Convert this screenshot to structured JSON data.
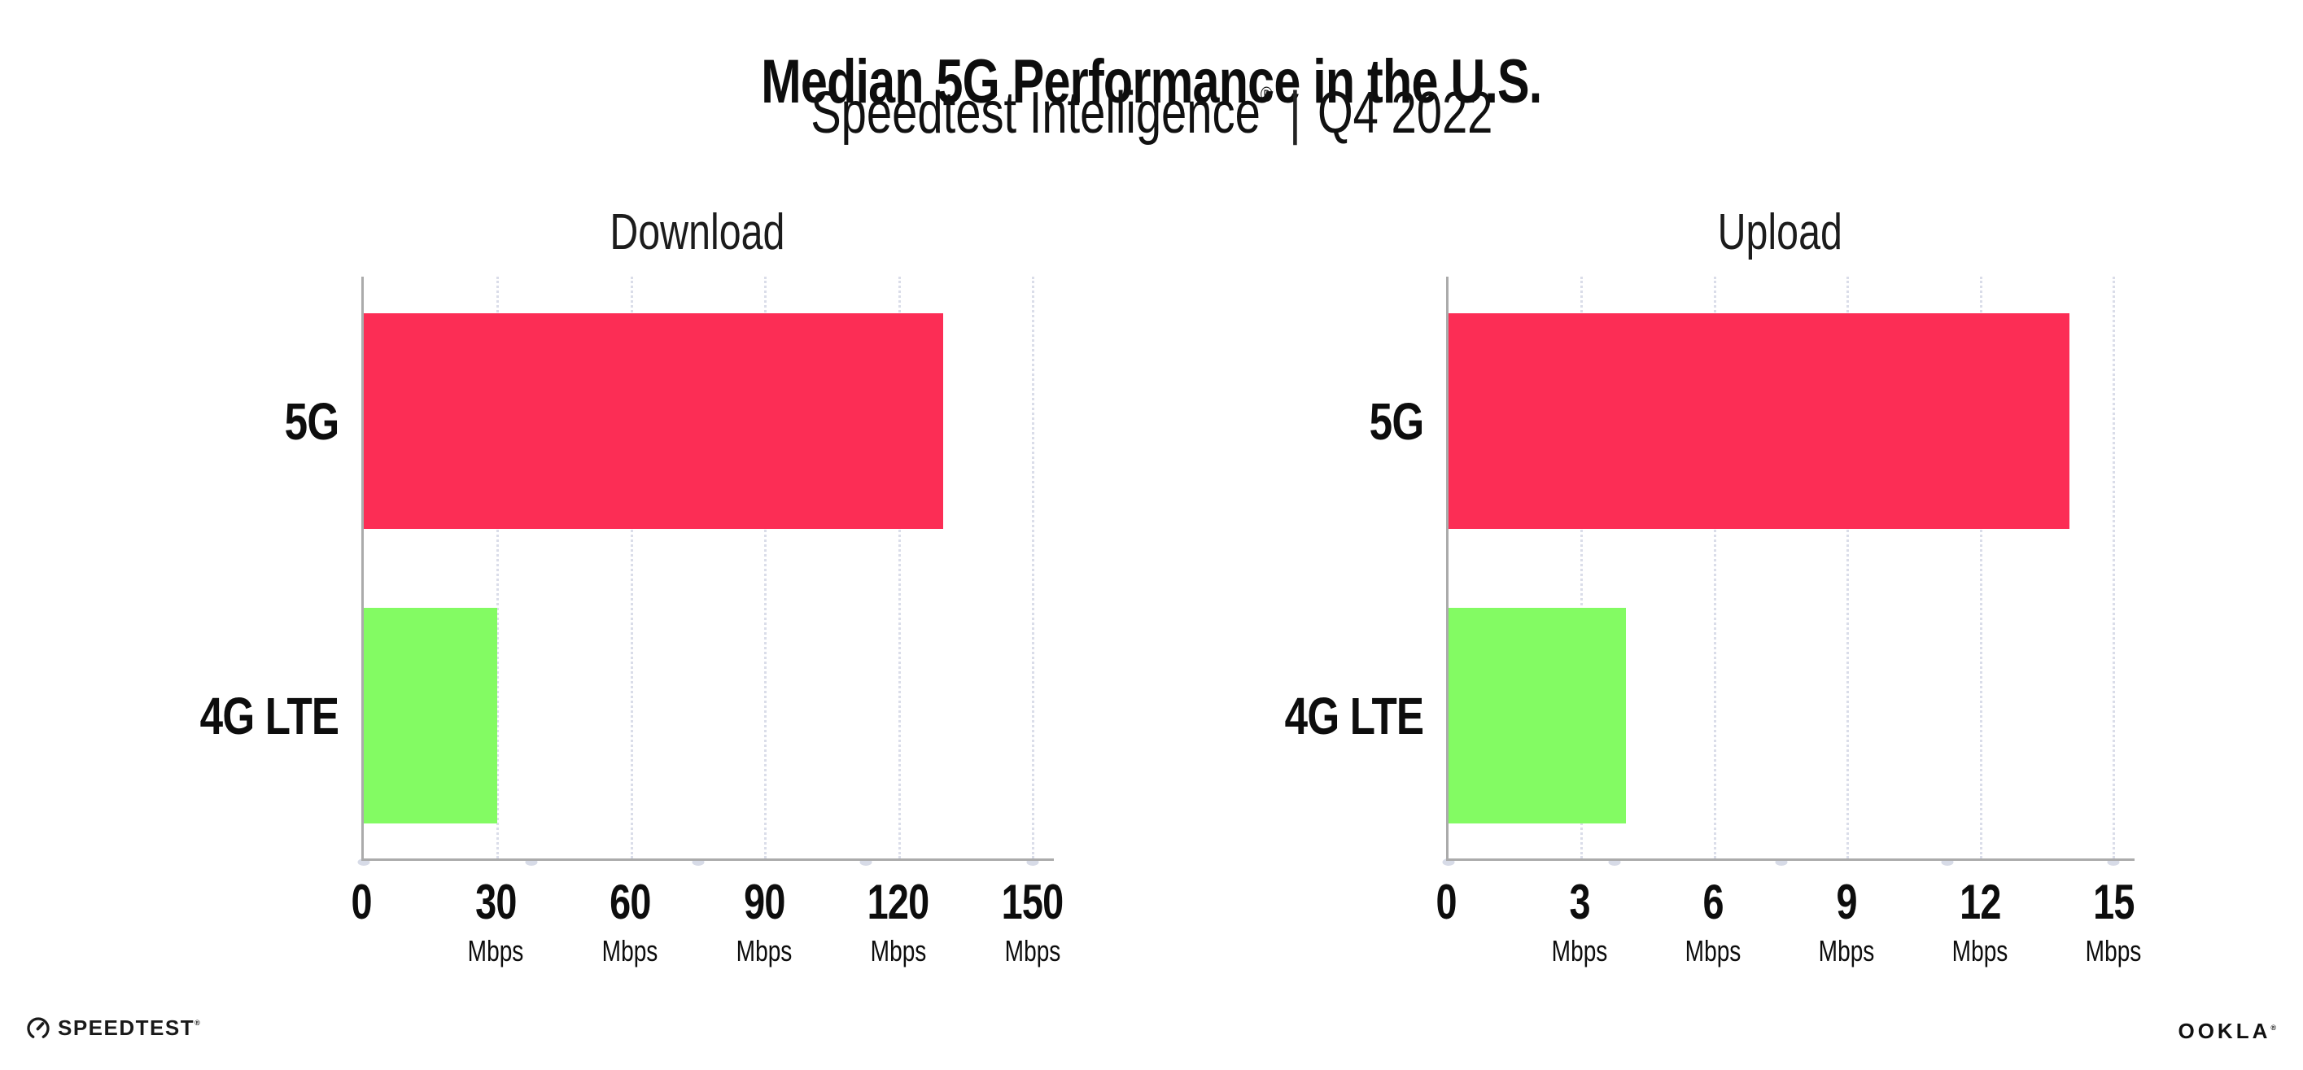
{
  "header": {
    "title": "Median 5G Performance in the U.S.",
    "subtitle_brand": "Speedtest Intelligence",
    "subtitle_reg": "®",
    "subtitle_divider": "|",
    "subtitle_period": "Q4 2022"
  },
  "chart_data": [
    {
      "type": "bar",
      "orientation": "horizontal",
      "title": "Download",
      "categories": [
        "5G",
        "4G LTE"
      ],
      "values": [
        130,
        30
      ],
      "unit": "Mbps",
      "xlim": [
        0,
        150
      ],
      "xticks": [
        0,
        30,
        60,
        90,
        120,
        150
      ],
      "colors": [
        "#FC2D55",
        "#83FB63"
      ],
      "grid": "dotted-vertical",
      "legend": "none"
    },
    {
      "type": "bar",
      "orientation": "horizontal",
      "title": "Upload",
      "categories": [
        "5G",
        "4G LTE"
      ],
      "values": [
        14,
        4
      ],
      "unit": "Mbps",
      "xlim": [
        0,
        15
      ],
      "xticks": [
        0,
        3,
        6,
        9,
        12,
        15
      ],
      "colors": [
        "#FC2D55",
        "#83FB63"
      ],
      "grid": "dotted-vertical",
      "legend": "none"
    }
  ],
  "footer": {
    "speedtest_text": "SPEEDTEST",
    "speedtest_reg": "®",
    "ookla_text": "OOKLA",
    "ookla_reg": "®"
  },
  "colors": {
    "bar_5g": "#FC2D55",
    "bar_4g_lte": "#83FB63",
    "axis": "#ABABAB",
    "gridline": "#DADDE9",
    "text": "#0D0D0D"
  }
}
